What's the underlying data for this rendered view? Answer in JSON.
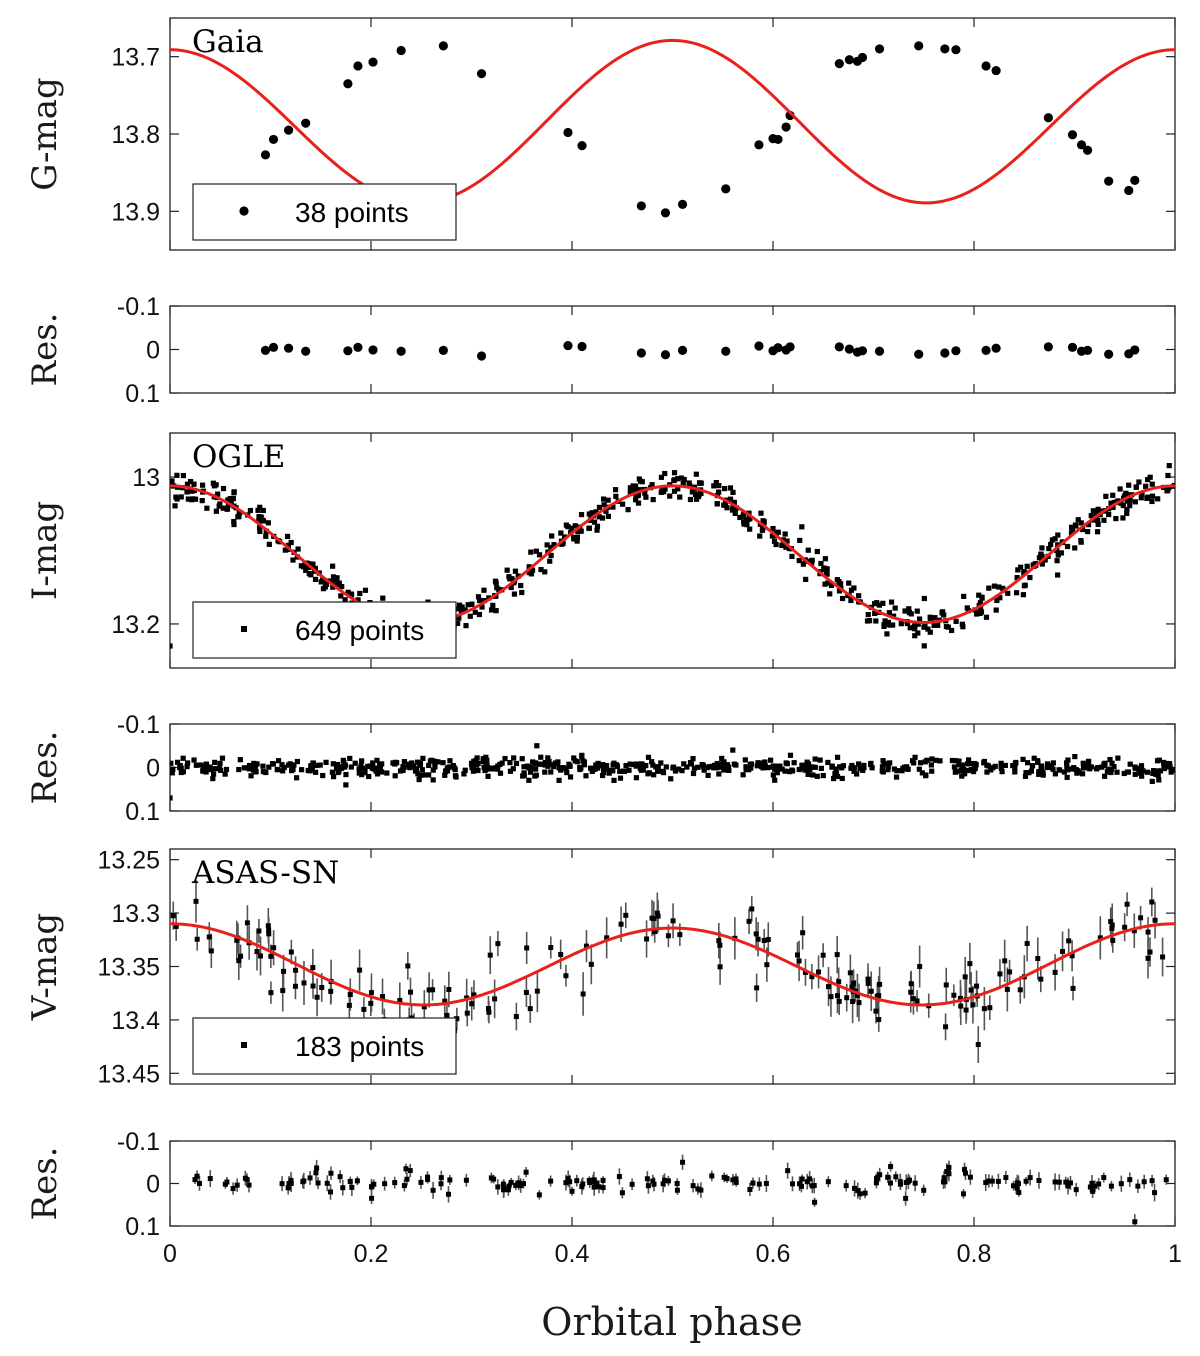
{
  "chart_data": {
    "type": "scatter",
    "xlabel": "Orbital phase",
    "xlim": [
      0,
      1
    ],
    "xticks": [
      "0",
      "0.2",
      "0.4",
      "0.6",
      "0.8",
      "1"
    ],
    "colors": {
      "fit": "#e8211c",
      "points": "#000000",
      "errorbars": "#555555"
    },
    "panels": [
      {
        "id": "gaia",
        "title": "Gaia",
        "ylabel": "G-mag",
        "ylim": [
          13.65,
          13.95
        ],
        "yticks": [
          "13.7",
          "13.8",
          "13.9"
        ],
        "legend": "38 points",
        "marker": "circle",
        "model": {
          "mean": 13.787,
          "a1": 0.006,
          "a2": -0.102,
          "ecl_offset": 0.009
        },
        "points": [
          [
            0.095,
            13.827
          ],
          [
            0.103,
            13.807
          ],
          [
            0.118,
            13.795
          ],
          [
            0.135,
            13.786
          ],
          [
            0.177,
            13.735
          ],
          [
            0.187,
            13.712
          ],
          [
            0.202,
            13.707
          ],
          [
            0.23,
            13.692
          ],
          [
            0.272,
            13.686
          ],
          [
            0.31,
            13.722
          ],
          [
            0.396,
            13.798
          ],
          [
            0.41,
            13.815
          ],
          [
            0.469,
            13.893
          ],
          [
            0.493,
            13.902
          ],
          [
            0.51,
            13.891
          ],
          [
            0.553,
            13.871
          ],
          [
            0.586,
            13.814
          ],
          [
            0.6,
            13.806
          ],
          [
            0.605,
            13.807
          ],
          [
            0.613,
            13.791
          ],
          [
            0.617,
            13.776
          ],
          [
            0.666,
            13.709
          ],
          [
            0.676,
            13.704
          ],
          [
            0.684,
            13.706
          ],
          [
            0.689,
            13.701
          ],
          [
            0.706,
            13.69
          ],
          [
            0.745,
            13.686
          ],
          [
            0.771,
            13.69
          ],
          [
            0.782,
            13.691
          ],
          [
            0.812,
            13.712
          ],
          [
            0.822,
            13.718
          ],
          [
            0.874,
            13.779
          ],
          [
            0.898,
            13.801
          ],
          [
            0.907,
            13.814
          ],
          [
            0.913,
            13.821
          ],
          [
            0.934,
            13.861
          ],
          [
            0.954,
            13.873
          ],
          [
            0.96,
            13.86
          ]
        ]
      },
      {
        "id": "gaia-res",
        "ylabel": "Res.",
        "ylim": [
          -0.1,
          0.1
        ],
        "yticks": [
          "-0.1",
          "0",
          "0.1"
        ],
        "marker": "circle",
        "points": [
          [
            0.095,
            0.002
          ],
          [
            0.103,
            -0.005
          ],
          [
            0.118,
            -0.003
          ],
          [
            0.135,
            0.004
          ],
          [
            0.177,
            0.003
          ],
          [
            0.187,
            -0.005
          ],
          [
            0.202,
            0.001
          ],
          [
            0.23,
            0.004
          ],
          [
            0.272,
            0.002
          ],
          [
            0.31,
            0.015
          ],
          [
            0.396,
            -0.009
          ],
          [
            0.41,
            -0.007
          ],
          [
            0.469,
            0.008
          ],
          [
            0.493,
            0.012
          ],
          [
            0.51,
            0.002
          ],
          [
            0.553,
            0.004
          ],
          [
            0.586,
            -0.008
          ],
          [
            0.6,
            0.003
          ],
          [
            0.605,
            -0.004
          ],
          [
            0.613,
            0.001
          ],
          [
            0.617,
            -0.006
          ],
          [
            0.666,
            -0.006
          ],
          [
            0.676,
            -0.001
          ],
          [
            0.684,
            0.006
          ],
          [
            0.689,
            0.003
          ],
          [
            0.706,
            0.004
          ],
          [
            0.745,
            0.011
          ],
          [
            0.771,
            0.008
          ],
          [
            0.782,
            0.003
          ],
          [
            0.812,
            0.002
          ],
          [
            0.822,
            -0.003
          ],
          [
            0.874,
            -0.006
          ],
          [
            0.898,
            -0.005
          ],
          [
            0.907,
            0.004
          ],
          [
            0.913,
            0.002
          ],
          [
            0.934,
            0.011
          ],
          [
            0.954,
            0.01
          ],
          [
            0.96,
            0.001
          ]
        ]
      },
      {
        "id": "ogle",
        "title": "OGLE",
        "ylabel": "I-mag",
        "ylim": [
          12.94,
          13.26
        ],
        "yticks": [
          "13",
          "13.2"
        ],
        "legend": "649 points",
        "marker": "square",
        "model": {
          "mean": 13.105,
          "a1": 0.0,
          "a2": -0.093,
          "ecl_offset": 0.011
        },
        "n_points": 649,
        "scatter": 0.011,
        "seed": 11,
        "extra_points": [
          [
            0.0,
            13.23
          ]
        ]
      },
      {
        "id": "ogle-res",
        "ylabel": "Res.",
        "ylim": [
          -0.1,
          0.1
        ],
        "yticks": [
          "-0.1",
          "0",
          "0.1"
        ],
        "marker": "square",
        "n_points": 649,
        "scatter": 0.011,
        "seed": 29,
        "extra_points": [
          [
            0.0,
            0.07
          ],
          [
            0.175,
            0.04
          ],
          [
            0.365,
            -0.05
          ],
          [
            0.56,
            -0.04
          ]
        ]
      },
      {
        "id": "asas",
        "title": "ASAS-SN",
        "ylabel": "V-mag",
        "ylim": [
          13.24,
          13.46
        ],
        "yticks": [
          "13.25",
          "13.3",
          "13.35",
          "13.4",
          "13.45"
        ],
        "legend": "183 points",
        "marker": "square",
        "model": {
          "mean": 13.349,
          "a1": -0.002,
          "a2": -0.037,
          "ecl_offset": 0.0
        },
        "n_points": 183,
        "scatter": 0.016,
        "errorbar": 0.018,
        "seed": 47
      },
      {
        "id": "asas-res",
        "ylabel": "Res.",
        "ylim": [
          -0.1,
          0.1
        ],
        "yticks": [
          "-0.1",
          "0",
          "0.1"
        ],
        "marker": "square",
        "n_points": 183,
        "scatter": 0.014,
        "errorbar": 0.018,
        "seed": 83,
        "extra_points": [
          [
            0.51,
            -0.05
          ],
          [
            0.96,
            0.09
          ]
        ]
      }
    ]
  }
}
